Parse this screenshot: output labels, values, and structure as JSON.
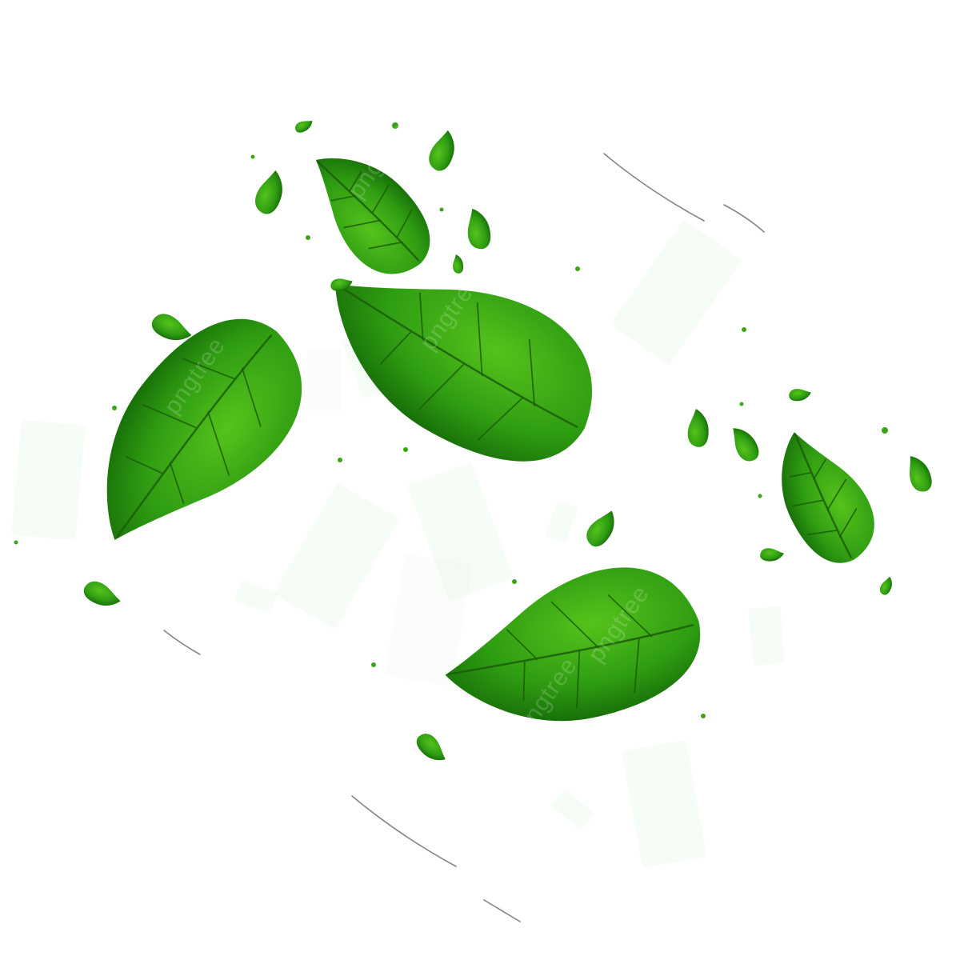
{
  "scene": {
    "background": "#ffffff",
    "subject": "leaf-icon",
    "colors": {
      "light": "#55c31b",
      "mid": "#2f9d12",
      "dark": "#0f5f05",
      "vein": "#1a5c08",
      "particle": "#3aa615",
      "streak": "#333333"
    }
  },
  "watermark": {
    "text": "pngtree"
  }
}
